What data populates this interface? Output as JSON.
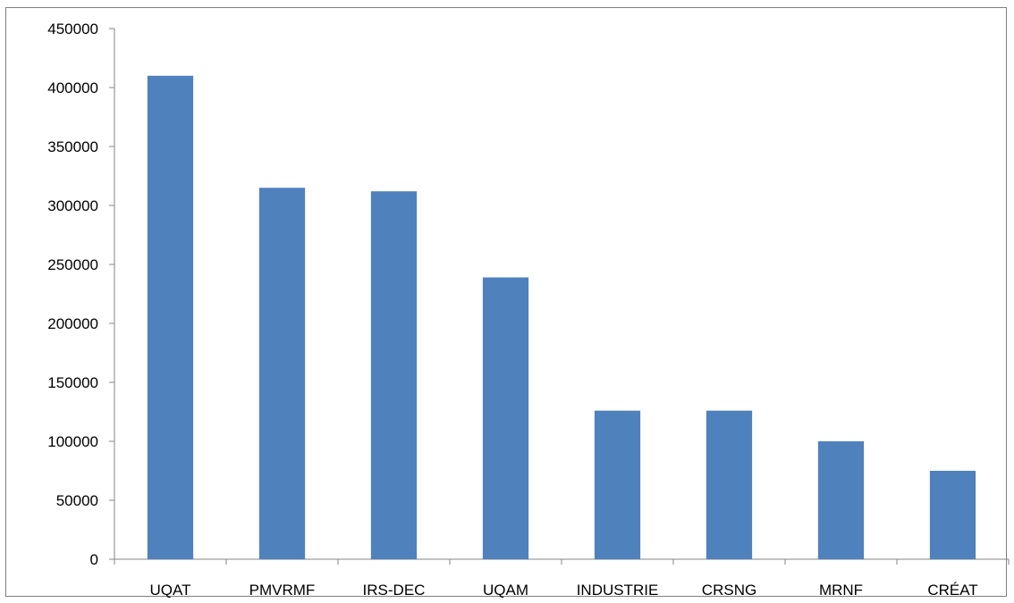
{
  "chart_data": {
    "type": "bar",
    "title": "",
    "xlabel": "",
    "ylabel": "",
    "categories": [
      "UQAT",
      "PMVRMF",
      "IRS-DEC",
      "UQAM",
      "INDUSTRIE",
      "CRSNG",
      "MRNF",
      "CRÉAT"
    ],
    "values": [
      410000,
      315000,
      312000,
      239000,
      126000,
      126000,
      100000,
      75000
    ],
    "ylim": [
      0,
      450000
    ],
    "yticks": [
      "0",
      "50000",
      "100000",
      "150000",
      "200000",
      "250000",
      "300000",
      "350000",
      "400000",
      "450000"
    ],
    "grid": false,
    "legend": "none",
    "bar_color": "#4f81bd",
    "axis_color": "#868686"
  }
}
